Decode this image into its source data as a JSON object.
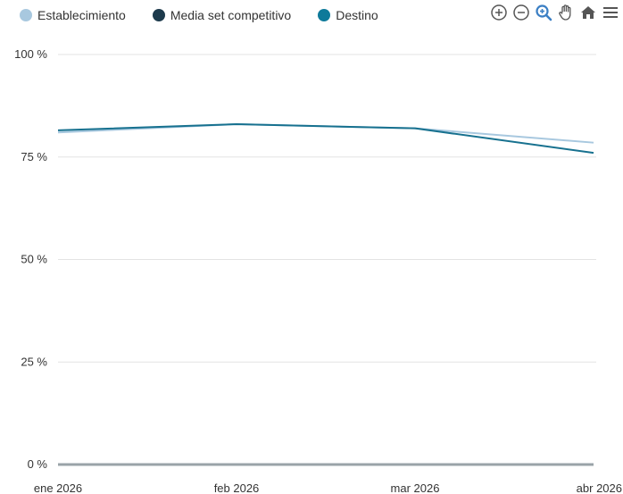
{
  "legend": {
    "items": [
      {
        "label": "Establecimiento",
        "color": "#a8c8df"
      },
      {
        "label": "Media set competitivo",
        "color": "#1d3a4c"
      },
      {
        "label": "Destino",
        "color": "#0e7a9a"
      }
    ]
  },
  "toolbar": {
    "icons": [
      "zoom-in-icon",
      "zoom-out-icon",
      "zoom-select-icon",
      "pan-hand-icon",
      "home-reset-icon",
      "menu-icon"
    ],
    "accent": "#3b7fc4"
  },
  "chart_data": {
    "type": "line",
    "x": [
      "ene 2026",
      "feb 2026",
      "mar 2026",
      "abr 2026"
    ],
    "y_ticks": [
      "100 %",
      "75 %",
      "50 %",
      "25 %",
      "0 %"
    ],
    "ylim": [
      0,
      100
    ],
    "grid": true,
    "legend_position": "top-left",
    "series": [
      {
        "name": "Establecimiento",
        "color": "#a8c8df",
        "values": [
          81,
          83,
          82,
          78.5
        ]
      },
      {
        "name": "Media set competitivo",
        "color": "#1d3a4c",
        "values": [
          0,
          0,
          0,
          0
        ]
      },
      {
        "name": "Destino",
        "color": "#17718f",
        "values": [
          81.5,
          83,
          82,
          76
        ]
      }
    ]
  }
}
